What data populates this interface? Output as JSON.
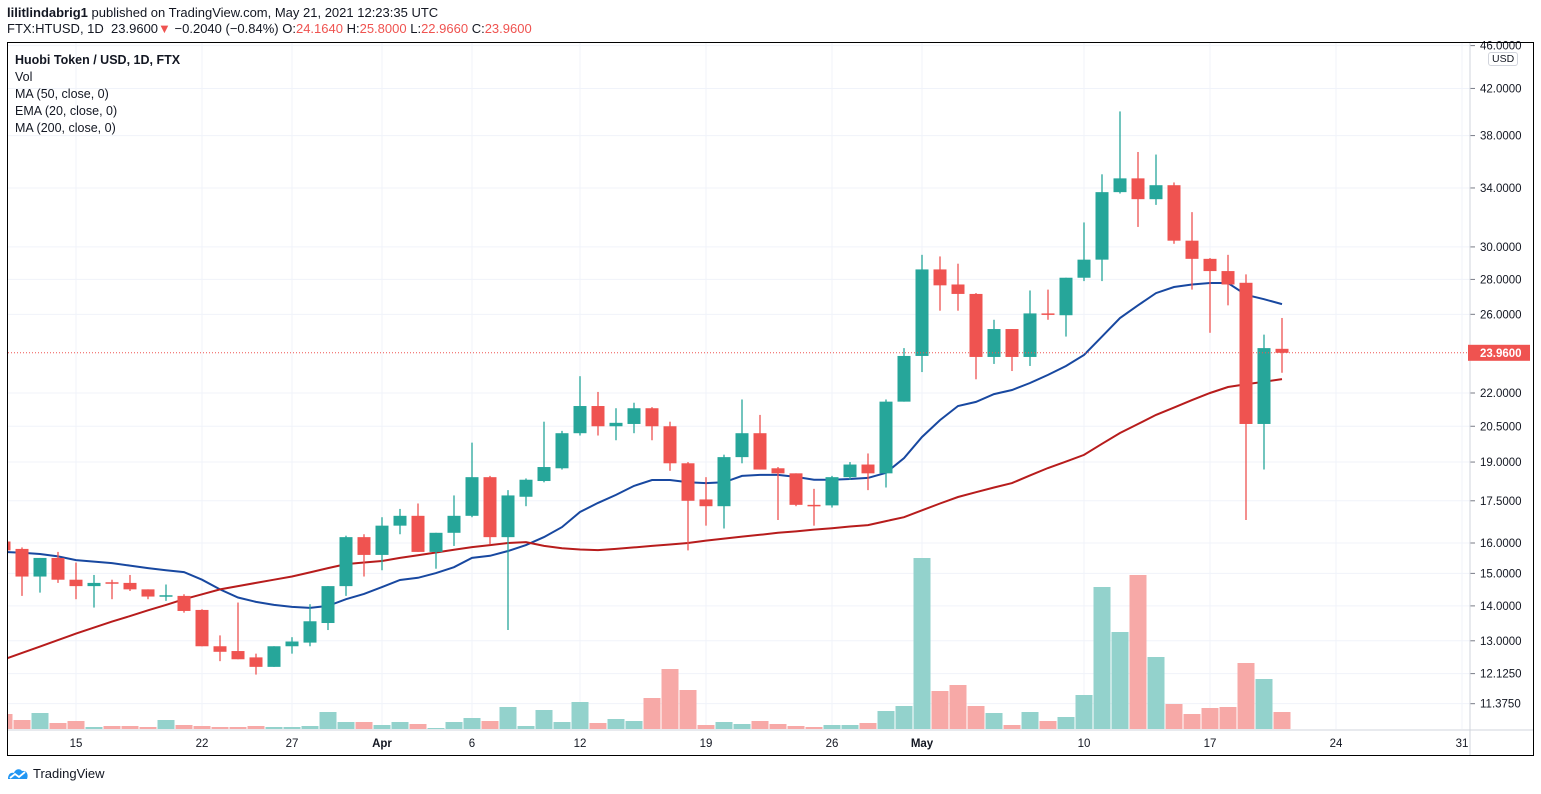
{
  "header": {
    "author": "lilitlindabrig1",
    "published": "published on TradingView.com, May 21, 2021 12:23:35 UTC",
    "symbol": "FTX:HTUSD, 1D",
    "last": "23.9600",
    "change": "−0.2040 (−0.84%)",
    "o_label": "O:",
    "o": "24.1640",
    "h_label": "H:",
    "h": "25.8000",
    "l_label": "L:",
    "l": "22.9660",
    "c_label": "C:",
    "c": "23.9600",
    "direction_icon": "triangle-down-icon"
  },
  "legend": {
    "title": "Huobi Token / USD, 1D, FTX",
    "vol": "Vol",
    "ma50": "MA (50, close, 0)",
    "ema20": "EMA (20, close, 0)",
    "ma200": "MA (200, close, 0)"
  },
  "currency": "USD",
  "footer": {
    "brand": "TradingView",
    "logo_icon": "tradingview-logo-icon"
  },
  "colors": {
    "up": "#26a69a",
    "down": "#ef5350",
    "vol_up": "#93d2cc",
    "vol_down": "#f7a9a7",
    "ema20": "#1848a0",
    "ma50": "#b71c1c",
    "grid": "#f0f3fa"
  },
  "chart_data": {
    "type": "candlestick",
    "scale": "log",
    "ylim": [
      11.1,
      46.0
    ],
    "grid": true,
    "last_price_label": "23.9600",
    "y_ticks": [
      "46.0000",
      "42.0000",
      "38.0000",
      "34.0000",
      "30.0000",
      "28.0000",
      "26.0000",
      "22.0000",
      "20.5000",
      "19.0000",
      "17.5000",
      "16.0000",
      "15.0000",
      "14.0000",
      "13.0000",
      "12.1250",
      "11.3750"
    ],
    "x_ticks": [
      {
        "label": "15",
        "date": "03-15",
        "bold": false
      },
      {
        "label": "22",
        "date": "03-22",
        "bold": false
      },
      {
        "label": "27",
        "date": "03-27",
        "bold": false
      },
      {
        "label": "Apr",
        "date": "04-01",
        "bold": true
      },
      {
        "label": "6",
        "date": "04-06",
        "bold": false
      },
      {
        "label": "12",
        "date": "04-12",
        "bold": false
      },
      {
        "label": "19",
        "date": "04-19",
        "bold": false
      },
      {
        "label": "26",
        "date": "04-26",
        "bold": false
      },
      {
        "label": "May",
        "date": "05-01",
        "bold": true
      },
      {
        "label": "10",
        "date": "05-10",
        "bold": false
      },
      {
        "label": "17",
        "date": "05-17",
        "bold": false
      },
      {
        "label": "24",
        "date": "05-24",
        "bold": false
      },
      {
        "label": "31",
        "date": "05-31",
        "bold": false
      }
    ],
    "candle_fields": [
      "date",
      "open",
      "high",
      "low",
      "close",
      "volume_relative"
    ],
    "candles": [
      [
        "03-11",
        16.05,
        16.1,
        15.7,
        15.75,
        45
      ],
      [
        "03-12",
        15.8,
        15.85,
        14.3,
        14.9,
        27
      ],
      [
        "03-13",
        14.9,
        15.5,
        14.4,
        15.5,
        48
      ],
      [
        "03-14",
        15.5,
        15.7,
        14.7,
        14.8,
        18
      ],
      [
        "03-15",
        14.8,
        15.35,
        14.2,
        14.6,
        24
      ],
      [
        "03-16",
        14.6,
        14.95,
        13.95,
        14.7,
        6
      ],
      [
        "03-17",
        14.72,
        14.8,
        14.2,
        14.7,
        9
      ],
      [
        "03-18",
        14.7,
        14.95,
        14.45,
        14.5,
        9
      ],
      [
        "03-19",
        14.5,
        14.5,
        14.2,
        14.28,
        6
      ],
      [
        "03-20",
        14.3,
        14.65,
        14.15,
        14.32,
        27
      ],
      [
        "03-21",
        14.3,
        14.35,
        13.8,
        13.85,
        12
      ],
      [
        "03-22",
        13.88,
        13.9,
        12.85,
        12.85,
        9
      ],
      [
        "03-23",
        12.85,
        13.15,
        12.45,
        12.7,
        6
      ],
      [
        "03-24",
        12.72,
        14.1,
        12.5,
        12.5,
        6
      ],
      [
        "03-25",
        12.55,
        12.65,
        12.1,
        12.3,
        9
      ],
      [
        "03-26",
        12.3,
        12.85,
        12.3,
        12.85,
        6
      ],
      [
        "03-27",
        12.85,
        13.1,
        12.65,
        12.98,
        6
      ],
      [
        "03-28",
        12.95,
        14.05,
        12.85,
        13.55,
        9
      ],
      [
        "03-29",
        13.5,
        14.6,
        13.3,
        14.6,
        51
      ],
      [
        "03-30",
        14.6,
        16.25,
        14.3,
        16.2,
        21
      ],
      [
        "03-31",
        16.2,
        16.3,
        14.9,
        15.6,
        21
      ],
      [
        "04-01",
        15.6,
        16.9,
        15.1,
        16.6,
        12
      ],
      [
        "04-02",
        16.6,
        17.2,
        16.3,
        16.95,
        21
      ],
      [
        "04-03",
        16.95,
        17.4,
        15.7,
        15.7,
        15
      ],
      [
        "04-04",
        15.7,
        16.35,
        15.15,
        16.35,
        3
      ],
      [
        "04-05",
        16.35,
        17.7,
        15.9,
        16.95,
        21
      ],
      [
        "04-06",
        16.95,
        19.8,
        16.9,
        18.4,
        33
      ],
      [
        "04-07",
        18.4,
        18.45,
        15.95,
        16.2,
        24
      ],
      [
        "04-08",
        16.2,
        17.9,
        13.3,
        17.7,
        66
      ],
      [
        "04-09",
        17.65,
        18.35,
        17.3,
        18.3,
        9
      ],
      [
        "04-10",
        18.25,
        20.7,
        18.2,
        18.8,
        57
      ],
      [
        "04-11",
        18.75,
        20.3,
        18.7,
        20.2,
        21
      ],
      [
        "04-12",
        20.2,
        22.8,
        20.1,
        21.4,
        81
      ],
      [
        "04-13",
        21.4,
        22.05,
        20.1,
        20.5,
        18
      ],
      [
        "04-14",
        20.5,
        21.3,
        19.9,
        20.65,
        30
      ],
      [
        "04-15",
        20.6,
        21.55,
        20.2,
        21.3,
        24
      ],
      [
        "04-16",
        21.3,
        21.35,
        19.9,
        20.5,
        93
      ],
      [
        "04-17",
        20.5,
        20.7,
        18.65,
        18.95,
        180
      ],
      [
        "04-18",
        18.95,
        19.0,
        15.75,
        17.5,
        117
      ],
      [
        "04-19",
        17.55,
        18.4,
        16.6,
        17.3,
        12
      ],
      [
        "04-20",
        17.3,
        19.3,
        16.5,
        19.2,
        21
      ],
      [
        "04-21",
        19.2,
        21.7,
        18.95,
        20.2,
        15
      ],
      [
        "04-22",
        20.2,
        21.0,
        18.7,
        18.7,
        24
      ],
      [
        "04-23",
        18.75,
        18.8,
        16.8,
        18.55,
        15
      ],
      [
        "04-24",
        18.55,
        18.55,
        17.3,
        17.35,
        9
      ],
      [
        "04-25",
        17.35,
        17.95,
        16.6,
        17.33,
        6
      ],
      [
        "04-26",
        17.33,
        18.45,
        17.25,
        18.4,
        12
      ],
      [
        "04-27",
        18.4,
        19.0,
        18.3,
        18.9,
        12
      ],
      [
        "04-28",
        18.9,
        19.35,
        17.9,
        18.55,
        18
      ],
      [
        "04-29",
        18.55,
        21.7,
        18.0,
        21.6,
        54
      ],
      [
        "04-30",
        21.6,
        24.2,
        21.6,
        23.8,
        69
      ],
      [
        "05-01",
        23.8,
        29.5,
        23.0,
        28.6,
        513
      ],
      [
        "05-02",
        28.6,
        29.4,
        26.2,
        27.65,
        114
      ],
      [
        "05-03",
        27.7,
        28.95,
        26.2,
        27.15,
        132
      ],
      [
        "05-04",
        27.15,
        27.2,
        22.65,
        23.75,
        69
      ],
      [
        "05-05",
        23.75,
        25.7,
        23.4,
        25.2,
        48
      ],
      [
        "05-06",
        25.2,
        25.2,
        23.05,
        23.75,
        12
      ],
      [
        "05-07",
        23.75,
        27.35,
        23.3,
        26.05,
        51
      ],
      [
        "05-08",
        26.05,
        27.4,
        25.7,
        26.0,
        24
      ],
      [
        "05-09",
        25.95,
        28.1,
        24.8,
        28.1,
        36
      ],
      [
        "05-10",
        28.1,
        31.6,
        27.9,
        29.2,
        102
      ],
      [
        "05-11",
        29.2,
        35.0,
        27.9,
        33.7,
        426
      ],
      [
        "05-12",
        33.7,
        40.0,
        33.6,
        34.7,
        291
      ],
      [
        "05-13",
        34.7,
        36.7,
        31.3,
        33.2,
        462
      ],
      [
        "05-14",
        33.2,
        36.5,
        32.8,
        34.2,
        216
      ],
      [
        "05-15",
        34.2,
        34.4,
        30.2,
        30.4,
        75
      ],
      [
        "05-16",
        30.4,
        32.3,
        27.4,
        29.25,
        45
      ],
      [
        "05-17",
        29.25,
        29.3,
        25.0,
        28.5,
        63
      ],
      [
        "05-18",
        28.5,
        29.5,
        26.5,
        27.7,
        66
      ],
      [
        "05-19",
        27.8,
        28.3,
        16.8,
        20.6,
        198
      ],
      [
        "05-20",
        20.6,
        24.9,
        18.7,
        24.2,
        150
      ],
      [
        "05-21",
        24.164,
        25.8,
        22.966,
        23.96,
        51
      ]
    ],
    "series": [
      {
        "name": "EMA (20, close, 0)",
        "color_key": "ema20",
        "values": [
          15.7,
          15.67,
          15.63,
          15.55,
          15.43,
          15.38,
          15.33,
          15.25,
          15.17,
          15.1,
          15.04,
          14.8,
          14.5,
          14.25,
          14.12,
          14.03,
          13.97,
          13.94,
          14.0,
          14.2,
          14.36,
          14.57,
          14.79,
          14.86,
          15.01,
          15.2,
          15.5,
          15.57,
          15.73,
          15.93,
          16.2,
          16.55,
          17.09,
          17.42,
          17.72,
          18.06,
          18.29,
          18.29,
          18.2,
          18.17,
          18.2,
          18.45,
          18.49,
          18.49,
          18.41,
          18.3,
          18.3,
          18.33,
          18.37,
          18.57,
          19.16,
          20.04,
          20.77,
          21.4,
          21.59,
          21.95,
          22.14,
          22.47,
          22.86,
          23.3,
          23.85,
          24.8,
          25.8,
          26.5,
          27.2,
          27.55,
          27.7,
          27.79,
          27.79,
          27.1,
          26.85,
          26.57
        ]
      },
      {
        "name": "MA (50, close, 0)",
        "color_key": "ma50",
        "values": [
          12.5,
          12.67,
          12.84,
          13.02,
          13.2,
          13.37,
          13.54,
          13.7,
          13.87,
          14.03,
          14.2,
          14.35,
          14.5,
          14.6,
          14.7,
          14.8,
          14.9,
          15.03,
          15.17,
          15.3,
          15.35,
          15.4,
          15.5,
          15.59,
          15.68,
          15.77,
          15.86,
          15.93,
          16.0,
          16.03,
          15.9,
          15.82,
          15.78,
          15.76,
          15.8,
          15.85,
          15.9,
          15.95,
          16.0,
          16.08,
          16.15,
          16.22,
          16.28,
          16.35,
          16.4,
          16.46,
          16.51,
          16.57,
          16.62,
          16.76,
          16.9,
          17.15,
          17.4,
          17.64,
          17.82,
          18.0,
          18.17,
          18.47,
          18.76,
          19.02,
          19.29,
          19.75,
          20.21,
          20.6,
          21.0,
          21.33,
          21.67,
          22.0,
          22.28,
          22.41,
          22.53,
          22.66
        ]
      }
    ]
  }
}
